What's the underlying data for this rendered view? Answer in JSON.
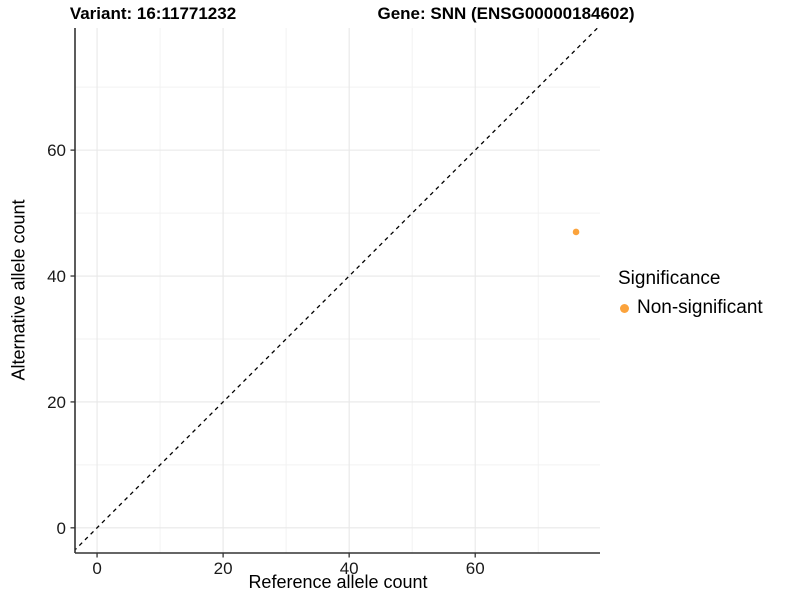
{
  "chart_data": {
    "type": "scatter",
    "title_left": "Variant: 16:11771232",
    "title_right": "Gene: SNN (ENSG00000184602)",
    "xlabel": "Reference allele count",
    "ylabel": "Alternative allele count",
    "xlim": [
      -3.5,
      79.8
    ],
    "ylim": [
      -4,
      79.4
    ],
    "xticks": [
      0,
      20,
      40,
      60
    ],
    "yticks": [
      0,
      20,
      40,
      60
    ],
    "minor_xticks": [
      10,
      30,
      50,
      70
    ],
    "minor_yticks": [
      10,
      30,
      50,
      70
    ],
    "grid": "major+minor",
    "points": [
      {
        "x": 76,
        "y": 47,
        "series": "Non-significant"
      }
    ],
    "reference_line": {
      "slope": 1,
      "intercept": 0,
      "style": "dashed",
      "color": "#000000"
    },
    "legend": {
      "title": "Significance",
      "position": "right",
      "entries": [
        {
          "label": "Non-significant",
          "color": "#FBA33C"
        }
      ]
    },
    "colors": {
      "point": "#FBA33C",
      "grid_major": "#E8E8E8",
      "grid_minor": "#F2F2F2",
      "axis": "#333333",
      "tick_text": "#1a1a1a"
    }
  }
}
